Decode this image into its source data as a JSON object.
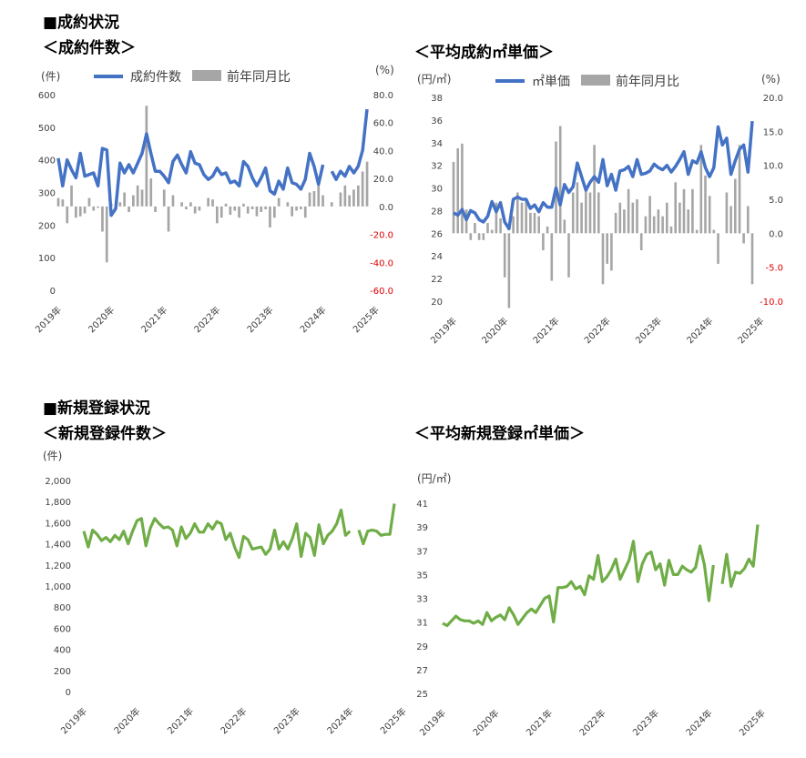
{
  "headings": {
    "section1": "■成約状況",
    "chart1_title": "＜成約件数＞",
    "chart2_title": "＜平均成約㎡単価＞",
    "section2": "■新規登録状況",
    "chart3_title": "＜新規登録件数＞",
    "chart4_title": "＜平均新規登録㎡単価＞"
  },
  "colors": {
    "blue": "#4472c4",
    "gray": "#a6a6a6",
    "lightgray": "#c8c8c8",
    "green": "#70ad47",
    "red": "#e00000"
  },
  "chart_data": [
    {
      "type": "bar+line",
      "title": "＜成約件数＞",
      "left_unit": "(件)",
      "right_unit": "(%)",
      "legend": [
        "成約件数",
        "前年同月比"
      ],
      "ylim_left": [
        0,
        600
      ],
      "yticks_left": [
        "0",
        "100",
        "200",
        "300",
        "400",
        "500",
        "600"
      ],
      "ylim_right": [
        -60,
        80
      ],
      "yticks_right": [
        "-60.0",
        "-40.0",
        "-20.0",
        "0.0",
        "20.0",
        "40.0",
        "60.0",
        "80.0"
      ],
      "x_labels": [
        "2019年",
        "2020年",
        "2021年",
        "2022年",
        "2023年",
        "2024年",
        "2025年"
      ],
      "series": [
        {
          "name": "成約件数",
          "axis": "left",
          "values": [
            405,
            320,
            400,
            370,
            345,
            420,
            350,
            355,
            360,
            320,
            435,
            430,
            230,
            250,
            390,
            360,
            385,
            360,
            390,
            420,
            480,
            420,
            365,
            365,
            350,
            330,
            395,
            415,
            385,
            360,
            425,
            390,
            385,
            355,
            340,
            350,
            375,
            355,
            360,
            330,
            335,
            320,
            395,
            380,
            345,
            320,
            345,
            375,
            305,
            295,
            335,
            310,
            375,
            330,
            325,
            310,
            340,
            420,
            380,
            325,
            385,
            null,
            365,
            340,
            365,
            350,
            380,
            360,
            380,
            430,
            555
          ]
        },
        {
          "name": "前年同月比",
          "axis": "right",
          "values": [
            6,
            5,
            -12,
            15,
            -8,
            -7,
            -5,
            6,
            -3,
            -1,
            -18,
            -40,
            2,
            -2,
            3,
            10,
            -4,
            8,
            15,
            12,
            72,
            20,
            -4,
            0,
            12,
            -18,
            8,
            0,
            3,
            -2,
            3,
            -5,
            -3,
            0,
            6,
            5,
            -12,
            -8,
            2,
            -6,
            -3,
            -8,
            2,
            -5,
            -2,
            -7,
            -4,
            -2,
            -15,
            -8,
            6,
            0,
            3,
            -7,
            -3,
            -2,
            -8,
            10,
            11,
            15,
            8,
            null,
            3,
            0,
            10,
            15,
            8,
            12,
            15,
            25,
            32
          ]
        }
      ]
    },
    {
      "type": "bar+line",
      "title": "＜平均成約㎡単価＞",
      "left_unit": "(円/㎡)",
      "right_unit": "(%)",
      "legend": [
        "㎡単価",
        "前年同月比"
      ],
      "ylim_left": [
        20,
        38
      ],
      "yticks_left": [
        "20",
        "22",
        "24",
        "26",
        "28",
        "30",
        "32",
        "34",
        "36",
        "38"
      ],
      "ylim_right": [
        -10,
        20
      ],
      "yticks_right": [
        "-10.0",
        "-5.0",
        "0.0",
        "5.0",
        "10.0",
        "15.0",
        "20.0"
      ],
      "x_labels": [
        "2019年",
        "2020年",
        "2021年",
        "2022年",
        "2023年",
        "2024年",
        "2025年"
      ],
      "series": [
        {
          "name": "㎡単価",
          "axis": "left",
          "values": [
            27.8,
            27.6,
            28.1,
            27.2,
            28.0,
            27.8,
            27.2,
            27.0,
            27.5,
            28.8,
            27.9,
            28.7,
            27.0,
            26.4,
            29.0,
            29.2,
            29.0,
            29.0,
            28.2,
            28.5,
            27.9,
            28.7,
            28.3,
            28.3,
            30.0,
            28.5,
            30.3,
            29.6,
            30.1,
            32.2,
            31.0,
            29.8,
            30.5,
            31.0,
            30.5,
            32.5,
            30.2,
            31.2,
            29.8,
            31.5,
            31.6,
            31.9,
            31.0,
            32.5,
            31.2,
            31.3,
            31.5,
            32.1,
            31.8,
            31.6,
            32.0,
            31.4,
            31.9,
            32.5,
            33.2,
            31.2,
            32.4,
            32.2,
            33.2,
            31.8,
            31.0,
            31.8,
            35.4,
            33.8,
            34.4,
            31.2,
            32.4,
            33.4,
            33.8,
            31.4,
            35.9
          ]
        },
        {
          "name": "前年同月比",
          "axis": "right",
          "values": [
            10.5,
            12.5,
            13.2,
            3.5,
            -1.0,
            1.5,
            -1.0,
            -1.0,
            1.5,
            0.5,
            4.5,
            2.2,
            -6.5,
            -11.0,
            2.5,
            6.0,
            4.5,
            5.0,
            3.0,
            3.0,
            2.5,
            -2.5,
            1.0,
            -7.0,
            13.5,
            15.8,
            2.0,
            -6.5,
            6.0,
            7.5,
            4.5,
            6.5,
            6.0,
            13.0,
            6.0,
            -7.5,
            -4.5,
            -5.5,
            3.0,
            4.5,
            3.5,
            6.5,
            4.5,
            5.0,
            -2.5,
            2.5,
            5.5,
            2.5,
            3.5,
            2.5,
            4.5,
            1.0,
            7.5,
            4.5,
            6.5,
            3.5,
            6.5,
            0.5,
            13.0,
            8.5,
            5.5,
            0.5,
            -4.5,
            0.0,
            6.0,
            4.0,
            8.0,
            13.0,
            -1.5,
            4.0,
            -7.5
          ]
        }
      ]
    },
    {
      "type": "line",
      "title": "＜新規登録件数＞",
      "left_unit": "(件)",
      "ylim": [
        0,
        2000
      ],
      "yticks": [
        "0",
        "200",
        "400",
        "600",
        "800",
        "1,000",
        "1,200",
        "1,400",
        "1,600",
        "1,800",
        "2,000"
      ],
      "x_labels": [
        "2019年",
        "2020年",
        "2021年",
        "2022年",
        "2023年",
        "2024年",
        "2025年"
      ],
      "series": [
        {
          "name": "",
          "values": [
            1520,
            1370,
            1530,
            1490,
            1430,
            1460,
            1420,
            1480,
            1440,
            1520,
            1400,
            1520,
            1620,
            1640,
            1380,
            1550,
            1640,
            1590,
            1550,
            1560,
            1530,
            1380,
            1560,
            1450,
            1500,
            1590,
            1510,
            1510,
            1590,
            1540,
            1610,
            1590,
            1440,
            1500,
            1370,
            1270,
            1470,
            1440,
            1350,
            1360,
            1370,
            1300,
            1350,
            1530,
            1350,
            1420,
            1350,
            1450,
            1590,
            1280,
            1500,
            1460,
            1290,
            1580,
            1400,
            1480,
            1520,
            1590,
            1720,
            1480,
            1520,
            null,
            1530,
            1400,
            1520,
            1530,
            1520,
            1480,
            1490,
            1490,
            1780
          ]
        }
      ]
    },
    {
      "type": "line",
      "title": "＜平均新規登録㎡単価＞",
      "left_unit": "(円/㎡)",
      "ylim": [
        25,
        41
      ],
      "yticks": [
        "25",
        "27",
        "29",
        "31",
        "33",
        "35",
        "37",
        "39",
        "41"
      ],
      "x_labels": [
        "2019年",
        "2020年",
        "2021年",
        "2022年",
        "2023年",
        "2024年",
        "2025年"
      ],
      "series": [
        {
          "name": "",
          "values": [
            30.9,
            30.7,
            31.1,
            31.5,
            31.2,
            31.1,
            31.1,
            30.9,
            31.1,
            30.8,
            31.8,
            31.1,
            31.4,
            31.6,
            31.2,
            32.2,
            31.6,
            30.8,
            31.3,
            31.8,
            32.1,
            31.8,
            32.4,
            33.0,
            33.2,
            31.0,
            33.9,
            33.9,
            34.0,
            34.4,
            33.8,
            34.0,
            33.3,
            34.9,
            34.6,
            36.6,
            34.4,
            34.8,
            35.4,
            36.3,
            34.6,
            35.4,
            36.2,
            37.8,
            34.4,
            35.9,
            36.7,
            36.9,
            35.4,
            35.9,
            34.1,
            36.2,
            35.0,
            35.0,
            35.7,
            35.4,
            35.2,
            35.6,
            37.4,
            35.8,
            32.8,
            35.8,
            null,
            34.2,
            36.7,
            34.0,
            35.2,
            35.1,
            35.5,
            36.3,
            35.7,
            39.2
          ]
        }
      ]
    }
  ]
}
